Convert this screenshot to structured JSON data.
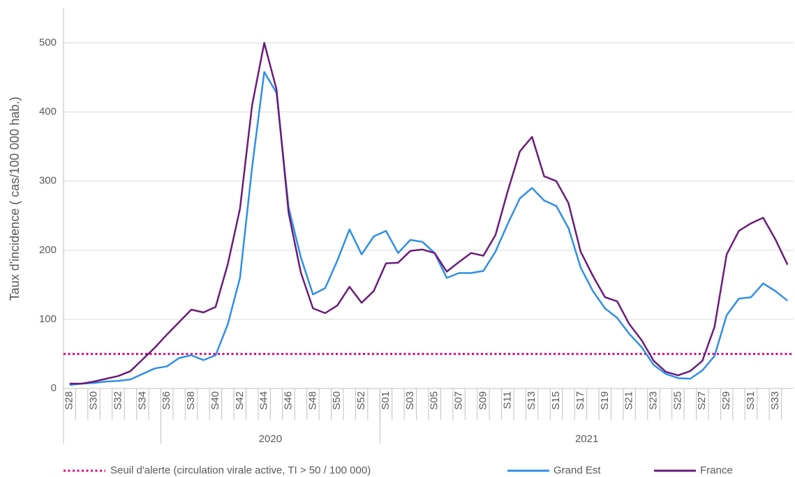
{
  "chart_data": {
    "type": "line",
    "ylabel": "Taux  d'incidence ( cas/100 000 hab.)",
    "categories": [
      "S28",
      null,
      "S30",
      null,
      "S32",
      null,
      "S34",
      null,
      "S36",
      null,
      "S38",
      null,
      "S40",
      null,
      "S42",
      null,
      "S44",
      null,
      "S46",
      null,
      "S48",
      null,
      "S50",
      null,
      "S52",
      null,
      "S01",
      null,
      "S03",
      null,
      "S05",
      null,
      "S07",
      null,
      "S09",
      null,
      "S11",
      null,
      "S13",
      null,
      "S15",
      null,
      "S17",
      null,
      "S19",
      null,
      "S21",
      null,
      "S23",
      null,
      "S25",
      null,
      "S27",
      null,
      "S29",
      null,
      "S31",
      null,
      "S33",
      null
    ],
    "x_groups": [
      {
        "label": null,
        "count": 8
      },
      {
        "label": "2020",
        "count": 18
      },
      {
        "label": "2021",
        "count": 34
      }
    ],
    "series": [
      {
        "name": "Grand Est",
        "color": "#2e8fe6",
        "values": [
          5,
          7,
          8,
          10,
          11,
          13,
          21,
          29,
          32,
          44,
          48,
          41,
          48,
          93,
          160,
          320,
          458,
          428,
          262,
          190,
          136,
          145,
          185,
          230,
          194,
          220,
          228,
          196,
          215,
          212,
          196,
          160,
          167,
          167,
          170,
          198,
          238,
          275,
          290,
          272,
          264,
          232,
          175,
          141,
          116,
          102,
          79,
          60,
          34,
          21,
          15,
          14,
          26,
          47,
          106,
          130,
          132,
          152,
          141,
          127
        ]
      },
      {
        "name": "France",
        "color": "#6a1b7a",
        "values": [
          7,
          7,
          10,
          14,
          18,
          25,
          42,
          59,
          78,
          96,
          114,
          110,
          118,
          180,
          260,
          410,
          500,
          433,
          254,
          168,
          116,
          109,
          120,
          147,
          124,
          141,
          181,
          182,
          199,
          201,
          196,
          169,
          183,
          196,
          192,
          222,
          285,
          343,
          364,
          307,
          300,
          268,
          198,
          163,
          132,
          126,
          93,
          70,
          40,
          24,
          19,
          25,
          40,
          89,
          194,
          228,
          239,
          247,
          216,
          179
        ]
      }
    ],
    "threshold": {
      "name": "Seuil d'alerte (circulation virale active, TI > 50 / 100 000)",
      "value": 50,
      "color": "#e6007e"
    },
    "ylim": [
      0,
      550
    ],
    "yticks": [
      0,
      100,
      200,
      300,
      400,
      500
    ],
    "grid": true
  }
}
